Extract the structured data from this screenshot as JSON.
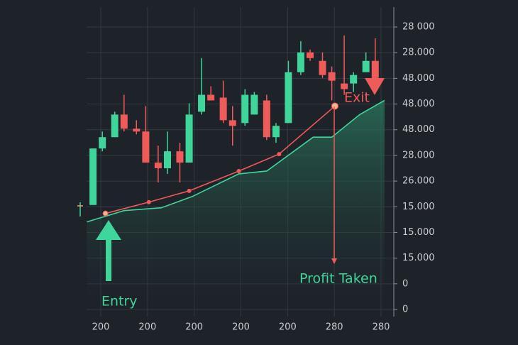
{
  "chart_data": {
    "type": "candlestick",
    "xlim": [
      0,
      100
    ],
    "ylim": [
      0,
      100
    ],
    "x_axis_labels": [
      "200",
      "200",
      "200",
      "200",
      "200",
      "280",
      "280"
    ],
    "y_axis_labels": [
      "28 000",
      "28.000",
      "48.000",
      "48.000",
      "48.000",
      "28.000",
      "26.000",
      "15.000",
      "15.000",
      "15.000",
      "0",
      "0"
    ],
    "up_color": "#3fd69b",
    "down_color": "#ef5a5a",
    "candles": {
      "x": [
        3,
        6,
        10,
        13,
        17,
        20,
        24,
        27,
        31,
        34,
        38,
        41,
        45,
        48,
        52,
        55,
        59,
        62,
        66,
        70,
        73,
        77,
        80,
        84,
        87,
        91,
        94
      ],
      "open": [
        37,
        57,
        61,
        69,
        64,
        63,
        52,
        50,
        56,
        52,
        70,
        76,
        75,
        67,
        66,
        69,
        74,
        61,
        66,
        84,
        91,
        88,
        84,
        80,
        80,
        84,
        88
      ],
      "high": [
        57,
        63,
        70,
        76,
        67,
        72,
        58,
        63,
        59,
        73,
        89,
        79,
        81,
        72,
        78,
        77,
        76,
        66,
        88,
        95,
        92,
        91,
        86,
        97,
        84,
        91,
        96
      ],
      "low": [
        37,
        56,
        61,
        63,
        62,
        52,
        45,
        48,
        45,
        52,
        69,
        74,
        66,
        58,
        65,
        69,
        60,
        59,
        66,
        83,
        88,
        82,
        74,
        76,
        77,
        84,
        81
      ],
      "close": [
        57,
        61,
        69,
        64,
        63,
        52,
        50,
        56,
        52,
        69,
        76,
        74,
        67,
        65,
        76,
        76,
        61,
        65,
        84,
        91,
        89,
        83,
        81,
        78,
        83,
        88,
        82
      ]
    },
    "line": {
      "color": "#ef5a5a",
      "x": [
        7,
        21,
        34,
        50,
        63,
        81
      ],
      "values": [
        34,
        38,
        42,
        49,
        55,
        72
      ]
    },
    "area": {
      "color": "#3fd69b",
      "x": [
        1,
        13,
        25,
        35,
        50,
        59,
        74,
        80,
        89,
        97
      ],
      "values": [
        31,
        35,
        36,
        40,
        48,
        49,
        61,
        61,
        69,
        74
      ]
    },
    "annotations": {
      "entry": "Entry",
      "exit": "Exit",
      "profit": "Profit Taken"
    }
  }
}
